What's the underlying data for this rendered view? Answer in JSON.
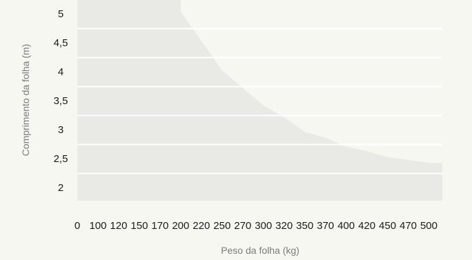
{
  "chart_data": {
    "type": "area",
    "title": "",
    "xlabel": "Peso da folha (kg)",
    "ylabel": "Comprimento da folha (m)",
    "x_ticks": [
      "0",
      "100",
      "120",
      "150",
      "170",
      "200",
      "220",
      "250",
      "270",
      "300",
      "320",
      "350",
      "370",
      "400",
      "420",
      "450",
      "470",
      "500"
    ],
    "y_ticks": [
      "5",
      "4,5",
      "4",
      "3,5",
      "3",
      "2,5",
      "2"
    ],
    "y_values": [
      5,
      4.5,
      4,
      3.5,
      3,
      2.5,
      2
    ],
    "ylim": [
      2,
      5
    ],
    "grid": true,
    "series": [
      {
        "x": [
          200,
          220,
          250,
          270,
          300,
          320,
          350,
          370,
          400,
          420,
          450,
          470,
          500
        ],
        "y": [
          5,
          4.5,
          4,
          3.7,
          3.4,
          3.2,
          2.95,
          2.85,
          2.7,
          2.62,
          2.52,
          2.47,
          2.42
        ]
      }
    ],
    "colors": {
      "background": "#f7f7f2",
      "area": "#e9e9e5",
      "grid": "#ffffff",
      "text": "#1a1a1a",
      "axis_label": "#7a7a7a"
    }
  }
}
